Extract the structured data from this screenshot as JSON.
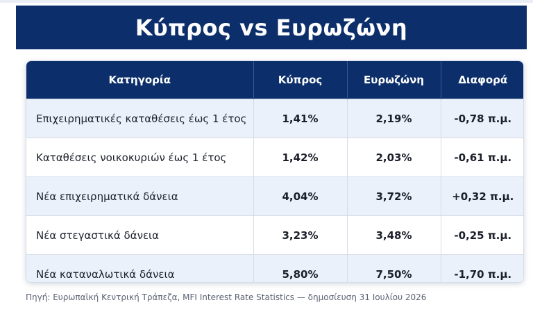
{
  "title": "Κύπρος vs Ευρωζώνη",
  "colors": {
    "header_bg": "#0c2f6b",
    "row_alt": "#ebf1fa",
    "border": "#d5dce8"
  },
  "table": {
    "headers": [
      "Κατηγορία",
      "Κύπρος",
      "Ευρωζώνη",
      "Διαφορά"
    ],
    "rows": [
      [
        "Επιχειρηματικές καταθέσεις έως 1 έτος",
        "1,41%",
        "2,19%",
        "-0,78 π.μ."
      ],
      [
        "Καταθέσεις νοικοκυριών έως 1 έτος",
        "1,42%",
        "2,03%",
        "-0,61 π.μ."
      ],
      [
        "Νέα επιχειρηματικά δάνεια",
        "4,04%",
        "3,72%",
        "+0,32 π.μ."
      ],
      [
        "Νέα στεγαστικά δάνεια",
        "3,23%",
        "3,48%",
        "-0,25 π.μ."
      ],
      [
        "Νέα καταναλωτικά δάνεια",
        "5,80%",
        "7,50%",
        "-1,70 π.μ."
      ]
    ]
  },
  "source": "Πηγή: Ευρωπαϊκή Κεντρική Τράπεζα, MFI Interest Rate Statistics — δημοσίευση 31 Ιουλίου 2026"
}
